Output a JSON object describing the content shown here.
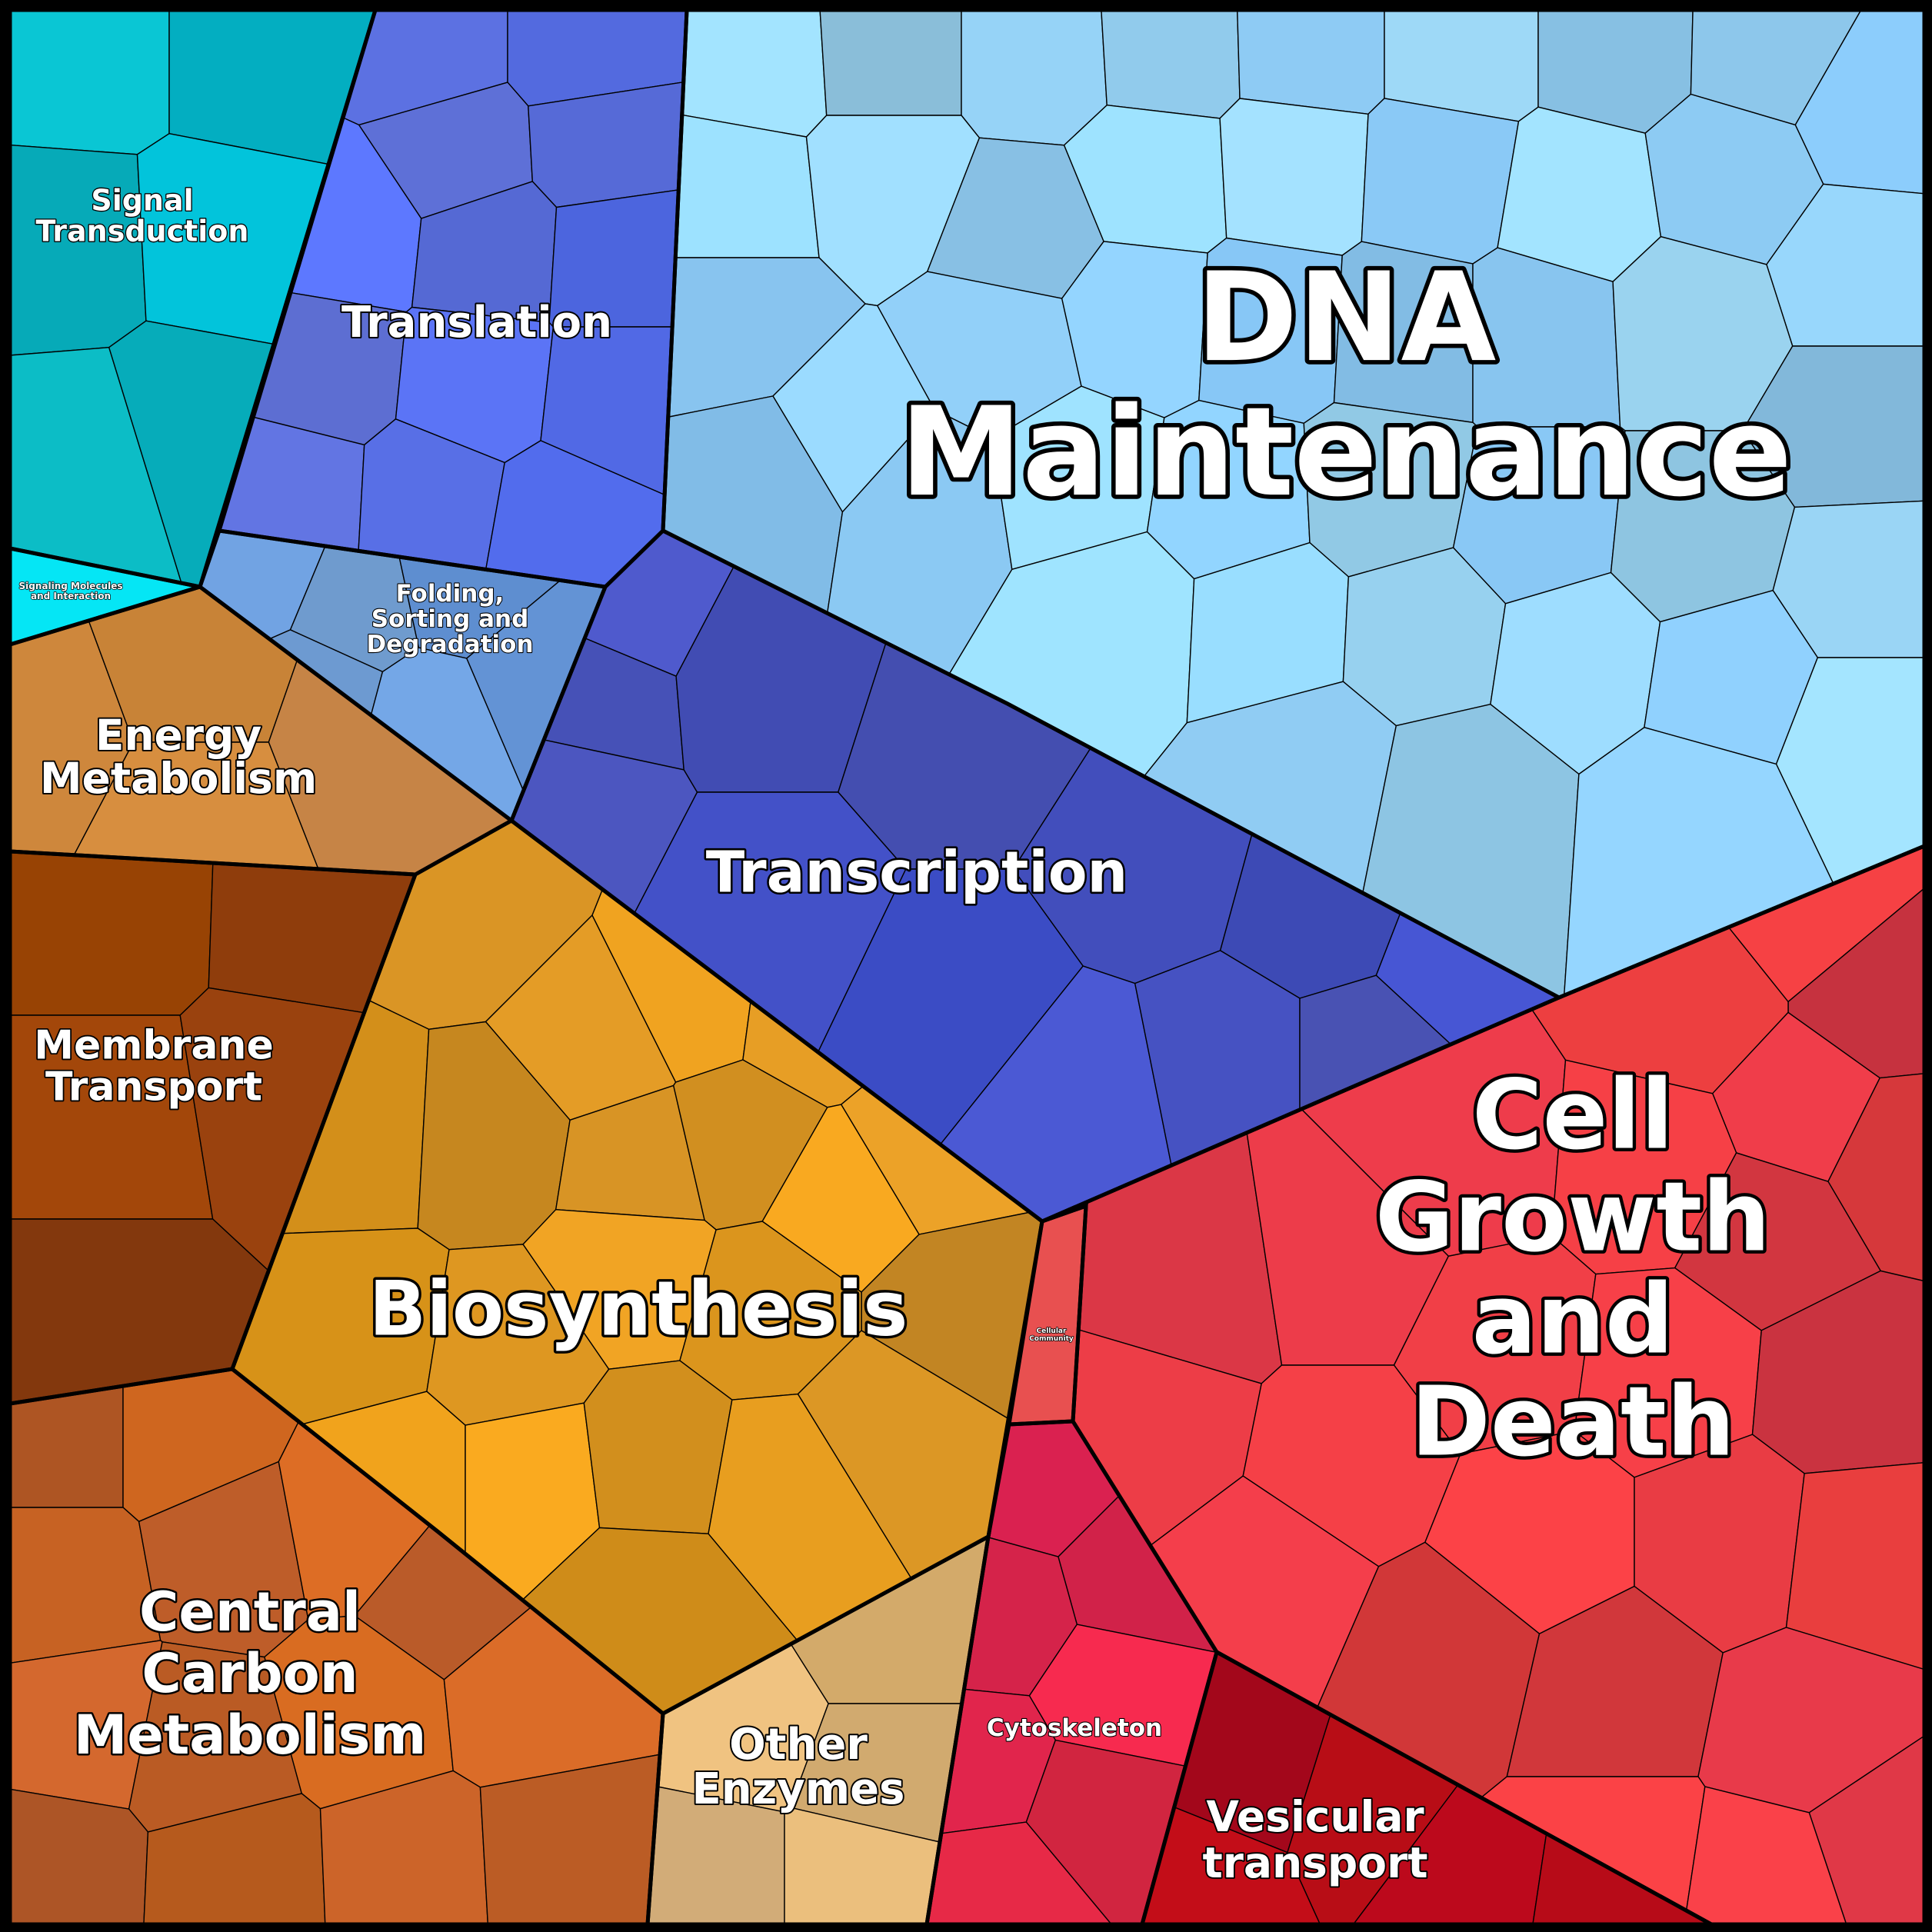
{
  "regions": [
    {
      "id": "dna-maintenance",
      "label_lines": [
        "DNA",
        "Maintenance"
      ],
      "color": "#92CFF5"
    },
    {
      "id": "transcription",
      "label_lines": [
        "Transcription"
      ],
      "color": "#4552C4"
    },
    {
      "id": "translation",
      "label_lines": [
        "Translation"
      ],
      "color": "#5D74EE"
    },
    {
      "id": "folding",
      "label_lines": [
        "Folding,",
        "Sorting and",
        "Degradation"
      ],
      "color": "#6FA2E4"
    },
    {
      "id": "signal-transduction",
      "label_lines": [
        "Signal",
        "Transduction"
      ],
      "color": "#05BCCE"
    },
    {
      "id": "signaling-molecules",
      "label_lines": [
        "Signaling Molecules",
        "and Interaction"
      ],
      "color": "#05E6F5"
    },
    {
      "id": "energy-metabolism",
      "label_lines": [
        "Energy",
        "Metabolism"
      ],
      "color": "#D48C42"
    },
    {
      "id": "membrane-transport",
      "label_lines": [
        "Membrane",
        "Transport"
      ],
      "color": "#94400A"
    },
    {
      "id": "biosynthesis",
      "label_lines": [
        "Biosynthesis"
      ],
      "color": "#DF9820"
    },
    {
      "id": "central-carbon",
      "label_lines": [
        "Central",
        "Carbon",
        "Metabolism"
      ],
      "color": "#C76224"
    },
    {
      "id": "other-enzymes",
      "label_lines": [
        "Other",
        "Enzymes"
      ],
      "color": "#DDB374"
    },
    {
      "id": "cell-growth",
      "label_lines": [
        "Cell",
        "Growth",
        "and",
        "Death"
      ],
      "color": "#E23A44"
    },
    {
      "id": "cellular-community",
      "label_lines": [
        "Cellular",
        "Community"
      ],
      "color": "#E85050"
    },
    {
      "id": "cytoskeleton",
      "label_lines": [
        "Cytoskeleton"
      ],
      "color": "#E1264A"
    },
    {
      "id": "vesicular-transport",
      "label_lines": [
        "Vesicular",
        "transport"
      ],
      "color": "#B1081C"
    }
  ]
}
